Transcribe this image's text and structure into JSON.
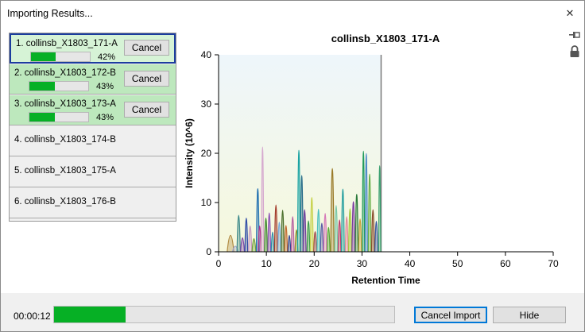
{
  "window": {
    "title": "Importing Results...",
    "close_glyph": "✕"
  },
  "header_icons": {
    "pin": "pin-icon",
    "lock": "lock-icon"
  },
  "files": [
    {
      "label": "1. collinsb_X1803_171-A",
      "state": "selected",
      "progress": 0.42,
      "percent": "42%",
      "cancel_label": "Cancel"
    },
    {
      "label": "2. collinsb_X1803_172-B",
      "state": "active",
      "progress": 0.43,
      "percent": "43%",
      "cancel_label": "Cancel"
    },
    {
      "label": "3. collinsb_X1803_173-A",
      "state": "active",
      "progress": 0.43,
      "percent": "43%",
      "cancel_label": "Cancel"
    },
    {
      "label": "4. collinsb_X1803_174-B",
      "state": "idle"
    },
    {
      "label": "5. collinsb_X1803_175-A",
      "state": "idle"
    },
    {
      "label": "6. collinsb_X1803_176-B",
      "state": "idle"
    }
  ],
  "colors": {
    "progress_green": "#06b025",
    "row_active": "#bde8bd",
    "row_selected": "#d6f3d6",
    "selection_border": "#1b3d9e",
    "chart_region_top": "#eef6fb",
    "chart_region_bottom": "#f6f8dc"
  },
  "chart_data": {
    "type": "line",
    "title": "collinsb_X1803_171-A",
    "xlabel": "Retention Time",
    "ylabel": "Intensity (10^6)",
    "xlim": [
      0,
      70
    ],
    "ylim": [
      0,
      40
    ],
    "xticks": [
      "0",
      "10",
      "20",
      "30",
      "40",
      "50",
      "60",
      "70"
    ],
    "yticks": [
      "0",
      "10",
      "20",
      "30",
      "40"
    ],
    "acquired_until": 34,
    "grid": false,
    "peaks": [
      {
        "x": 2.5,
        "y": 3.5,
        "w": 0.7,
        "color": "#b08a40"
      },
      {
        "x": 3.5,
        "y": 1.2,
        "w": 0.6,
        "color": "#9aa0c8"
      },
      {
        "x": 4.2,
        "y": 7.8,
        "w": 0.35,
        "color": "#3d8a8a"
      },
      {
        "x": 5.0,
        "y": 3.0,
        "w": 0.4,
        "color": "#7a46a8"
      },
      {
        "x": 5.8,
        "y": 7.2,
        "w": 0.3,
        "color": "#2c49a6"
      },
      {
        "x": 6.6,
        "y": 5.5,
        "w": 0.35,
        "color": "#c59ac0"
      },
      {
        "x": 7.4,
        "y": 2.8,
        "w": 0.4,
        "color": "#6e9e37"
      },
      {
        "x": 8.2,
        "y": 13.5,
        "w": 0.3,
        "color": "#1f6fb0"
      },
      {
        "x": 8.6,
        "y": 5.5,
        "w": 0.3,
        "color": "#b0338a"
      },
      {
        "x": 9.2,
        "y": 22.4,
        "w": 0.25,
        "color": "#d6a9cf"
      },
      {
        "x": 9.9,
        "y": 7.2,
        "w": 0.3,
        "color": "#3d8a2c"
      },
      {
        "x": 10.6,
        "y": 8.3,
        "w": 0.3,
        "color": "#8a4fb5"
      },
      {
        "x": 11.3,
        "y": 4.2,
        "w": 0.3,
        "color": "#2a8aa5"
      },
      {
        "x": 12.0,
        "y": 10.0,
        "w": 0.3,
        "color": "#a33b2b"
      },
      {
        "x": 12.7,
        "y": 6.3,
        "w": 0.3,
        "color": "#7aa9d9"
      },
      {
        "x": 13.4,
        "y": 8.9,
        "w": 0.3,
        "color": "#4a6e2a"
      },
      {
        "x": 14.1,
        "y": 5.6,
        "w": 0.3,
        "color": "#c26a2f"
      },
      {
        "x": 14.8,
        "y": 3.5,
        "w": 0.3,
        "color": "#2f3f8f"
      },
      {
        "x": 15.5,
        "y": 7.5,
        "w": 0.3,
        "color": "#b55fa0"
      },
      {
        "x": 16.3,
        "y": 4.7,
        "w": 0.3,
        "color": "#8f8f2a"
      },
      {
        "x": 16.8,
        "y": 21.7,
        "w": 0.28,
        "color": "#1aa3a3"
      },
      {
        "x": 17.4,
        "y": 16.3,
        "w": 0.28,
        "color": "#2a6e8a"
      },
      {
        "x": 18.0,
        "y": 9.0,
        "w": 0.3,
        "color": "#6a3a9a"
      },
      {
        "x": 18.8,
        "y": 6.6,
        "w": 0.3,
        "color": "#3a9a4a"
      },
      {
        "x": 19.5,
        "y": 11.6,
        "w": 0.3,
        "color": "#c7d24a"
      },
      {
        "x": 20.2,
        "y": 4.3,
        "w": 0.3,
        "color": "#a24a4a"
      },
      {
        "x": 20.9,
        "y": 9.1,
        "w": 0.3,
        "color": "#4ac0c0"
      },
      {
        "x": 21.6,
        "y": 6.1,
        "w": 0.3,
        "color": "#5a5aa6"
      },
      {
        "x": 22.3,
        "y": 8.2,
        "w": 0.3,
        "color": "#d67ab8"
      },
      {
        "x": 23.0,
        "y": 5.2,
        "w": 0.3,
        "color": "#5aa63a"
      },
      {
        "x": 23.8,
        "y": 17.8,
        "w": 0.35,
        "color": "#9a7a28"
      },
      {
        "x": 24.6,
        "y": 9.9,
        "w": 0.3,
        "color": "#7ac8a8"
      },
      {
        "x": 25.3,
        "y": 6.8,
        "w": 0.3,
        "color": "#b83a6a"
      },
      {
        "x": 26.0,
        "y": 13.4,
        "w": 0.3,
        "color": "#28a0a0"
      },
      {
        "x": 26.8,
        "y": 7.5,
        "w": 0.3,
        "color": "#e08a9a"
      },
      {
        "x": 27.5,
        "y": 9.2,
        "w": 0.3,
        "color": "#a0c83a"
      },
      {
        "x": 28.2,
        "y": 10.7,
        "w": 0.3,
        "color": "#7a3aa0"
      },
      {
        "x": 28.9,
        "y": 12.3,
        "w": 0.3,
        "color": "#2a7a3a"
      },
      {
        "x": 29.6,
        "y": 7.0,
        "w": 0.3,
        "color": "#c8a03a"
      },
      {
        "x": 30.3,
        "y": 21.5,
        "w": 0.25,
        "color": "#1f9a5a"
      },
      {
        "x": 30.9,
        "y": 21.0,
        "w": 0.25,
        "color": "#4a8ac8"
      },
      {
        "x": 31.6,
        "y": 16.6,
        "w": 0.28,
        "color": "#6ab04a"
      },
      {
        "x": 32.3,
        "y": 9.0,
        "w": 0.3,
        "color": "#8a4a2a"
      },
      {
        "x": 33.0,
        "y": 6.5,
        "w": 0.3,
        "color": "#3a5aa0"
      },
      {
        "x": 33.7,
        "y": 18.4,
        "w": 0.22,
        "color": "#3aa070"
      }
    ]
  },
  "footer": {
    "elapsed": "00:00:12",
    "progress": 0.21,
    "cancel_import_label": "Cancel Import",
    "hide_label": "Hide"
  }
}
